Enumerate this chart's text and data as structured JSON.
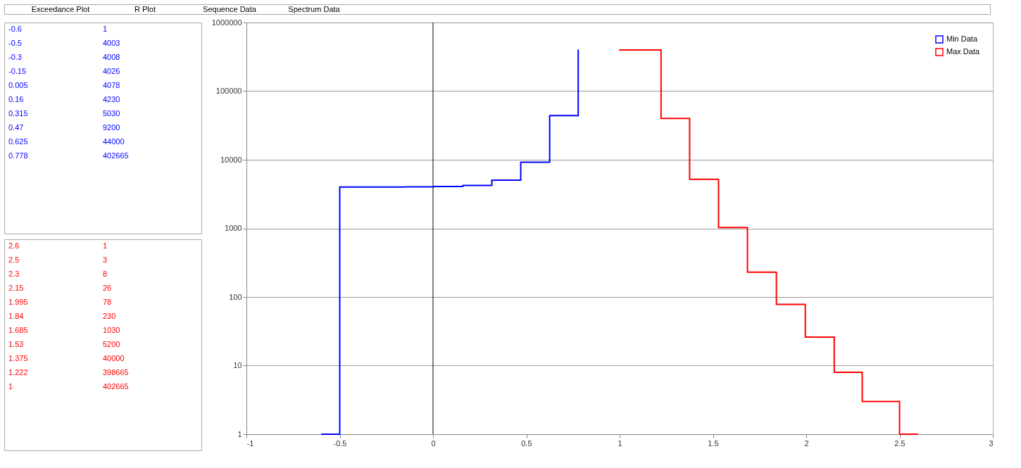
{
  "chart_data": [
    {
      "type": "other",
      "annotations": [
        "Exceedance Plot",
        "R Plot",
        "Sequence Data",
        "Spectrum Data"
      ]
    },
    {
      "type": "other",
      "annotations": [
        "-0.6",
        "1",
        "-0.5",
        "4003",
        "-0.3",
        "4008",
        "-0.15",
        "4026",
        "0.005",
        "4078",
        "0.16",
        "4230",
        "0.315",
        "5030",
        "0.47",
        "9200",
        "0.625",
        "44000",
        "0.778",
        "402665"
      ],
      "color": "#0000ff"
    },
    {
      "type": "other",
      "annotations": [
        "2.6",
        "1",
        "2.5",
        "3",
        "2.3",
        "8",
        "2.15",
        "26",
        "1.995",
        "78",
        "1.84",
        "230",
        "1.685",
        "1030",
        "1.53",
        "5200",
        "1.375",
        "40000",
        "1.222",
        "398665",
        "1",
        "402665"
      ],
      "color": "#ff0000"
    },
    {
      "type": "step",
      "series": [
        {
          "name": "Min Data",
          "color": "#0000ff",
          "x": [
            -0.6,
            -0.5,
            -0.3,
            -0.15,
            0.005,
            0.16,
            0.315,
            0.47,
            0.625,
            0.778
          ],
          "values": [
            1,
            4003,
            4008,
            4026,
            4078,
            4230,
            5030,
            9200,
            44000,
            402665
          ]
        },
        {
          "name": "Max Data",
          "color": "#ff0000",
          "x": [
            2.6,
            2.5,
            2.3,
            2.15,
            1.995,
            1.84,
            1.685,
            1.53,
            1.375,
            1.222,
            1
          ],
          "values": [
            1,
            3,
            8,
            26,
            78,
            230,
            1030,
            5200,
            40000,
            398665,
            402665
          ]
        }
      ],
      "xlim": [
        -1,
        3
      ],
      "xticks": [
        -1,
        -0.5,
        0,
        0.5,
        1,
        1.5,
        2,
        2.5,
        3
      ],
      "ylim": [
        1,
        1000000
      ],
      "yticks": [
        1,
        10,
        100,
        1000,
        10000,
        100000,
        1000000
      ],
      "log": true,
      "grid": "y",
      "legend": "top right",
      "ref_lines": [
        {
          "axis": "x",
          "value": 0,
          "color": "#000000"
        }
      ]
    }
  ]
}
